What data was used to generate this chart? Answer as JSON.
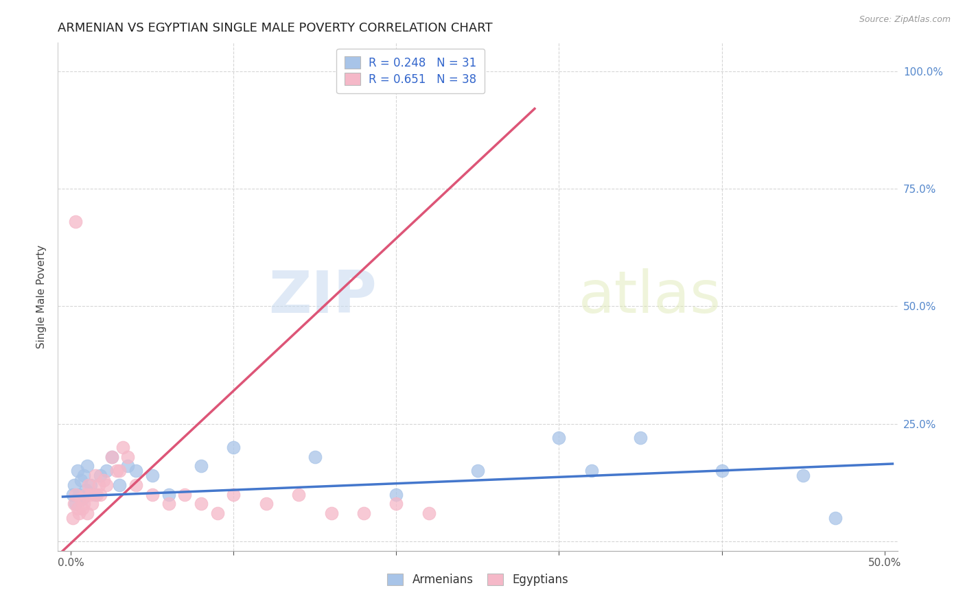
{
  "title": "ARMENIAN VS EGYPTIAN SINGLE MALE POVERTY CORRELATION CHART",
  "source": "Source: ZipAtlas.com",
  "ylabel": "Single Male Poverty",
  "watermark_zip": "ZIP",
  "watermark_atlas": "atlas",
  "legend_armenians": "Armenians",
  "legend_egyptians": "Egyptians",
  "armenian_R": 0.248,
  "armenian_N": 31,
  "egyptian_R": 0.651,
  "egyptian_N": 38,
  "armenian_color": "#a8c4e8",
  "egyptian_color": "#f5b8c8",
  "armenian_line_color": "#4477cc",
  "egyptian_line_color": "#dd5577",
  "background_color": "#ffffff",
  "xmin": 0.0,
  "xmax": 0.5,
  "ymin": 0.0,
  "ymax": 1.0,
  "armenian_x": [
    0.001,
    0.002,
    0.003,
    0.004,
    0.005,
    0.006,
    0.007,
    0.008,
    0.009,
    0.01,
    0.012,
    0.015,
    0.018,
    0.022,
    0.025,
    0.03,
    0.035,
    0.04,
    0.05,
    0.06,
    0.08,
    0.1,
    0.15,
    0.2,
    0.25,
    0.3,
    0.32,
    0.35,
    0.4,
    0.45,
    0.47
  ],
  "armenian_y": [
    0.1,
    0.12,
    0.08,
    0.15,
    0.1,
    0.13,
    0.09,
    0.14,
    0.11,
    0.16,
    0.12,
    0.1,
    0.14,
    0.15,
    0.18,
    0.12,
    0.16,
    0.15,
    0.14,
    0.1,
    0.16,
    0.2,
    0.18,
    0.1,
    0.15,
    0.22,
    0.15,
    0.22,
    0.15,
    0.14,
    0.05
  ],
  "egyptian_x": [
    0.001,
    0.002,
    0.003,
    0.004,
    0.005,
    0.006,
    0.007,
    0.008,
    0.009,
    0.01,
    0.011,
    0.012,
    0.013,
    0.015,
    0.016,
    0.017,
    0.018,
    0.02,
    0.022,
    0.025,
    0.028,
    0.03,
    0.032,
    0.035,
    0.04,
    0.05,
    0.06,
    0.07,
    0.08,
    0.09,
    0.1,
    0.12,
    0.14,
    0.16,
    0.18,
    0.2,
    0.22,
    0.003
  ],
  "egyptian_y": [
    0.05,
    0.08,
    0.1,
    0.07,
    0.06,
    0.09,
    0.07,
    0.08,
    0.1,
    0.06,
    0.12,
    0.1,
    0.08,
    0.14,
    0.1,
    0.12,
    0.1,
    0.13,
    0.12,
    0.18,
    0.15,
    0.15,
    0.2,
    0.18,
    0.12,
    0.1,
    0.08,
    0.1,
    0.08,
    0.06,
    0.1,
    0.08,
    0.1,
    0.06,
    0.06,
    0.08,
    0.06,
    0.68
  ],
  "egy_line_x0": -0.005,
  "egy_line_x1": 0.285,
  "egy_line_y0": -0.02,
  "egy_line_y1": 0.92,
  "arm_line_x0": -0.005,
  "arm_line_x1": 0.505,
  "arm_line_y0": 0.095,
  "arm_line_y1": 0.165,
  "grid_color": "#cccccc",
  "title_fontsize": 13,
  "tick_fontsize": 11,
  "label_fontsize": 11,
  "yticks": [
    0.0,
    0.25,
    0.5,
    0.75,
    1.0
  ],
  "ytick_labels_right": [
    "",
    "25.0%",
    "50.0%",
    "75.0%",
    "100.0%"
  ],
  "xtick_labels": [
    "0.0%",
    "",
    "",
    "",
    "",
    "50.0%"
  ]
}
